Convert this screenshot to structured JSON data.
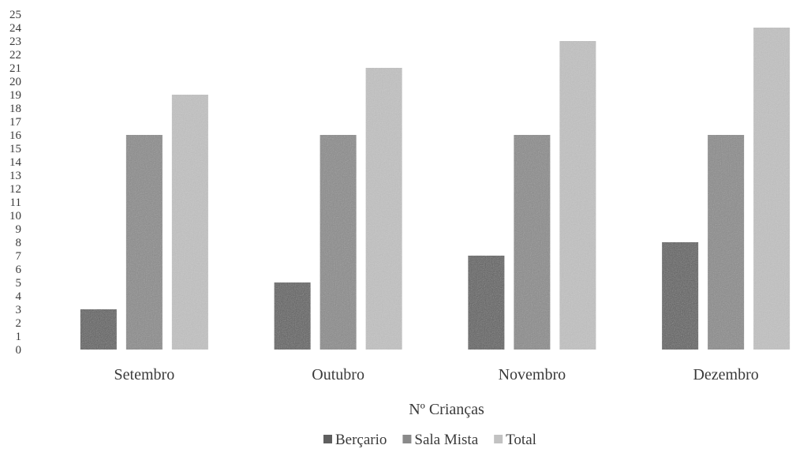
{
  "chart_data": {
    "type": "bar",
    "title": "",
    "xlabel": "Nº Crianças",
    "ylabel": "",
    "categories": [
      "Setembro",
      "Outubro",
      "Novembro",
      "Dezembro"
    ],
    "series": [
      {
        "name": "Berçario",
        "values": [
          3,
          5,
          7,
          8
        ]
      },
      {
        "name": "Sala Mista",
        "values": [
          16,
          16,
          16,
          16
        ]
      },
      {
        "name": "Total",
        "values": [
          19,
          21,
          23,
          24
        ]
      }
    ],
    "ylim": [
      0,
      25
    ],
    "yticks": [
      "0",
      "1",
      "2",
      "3",
      "4",
      "5",
      "6",
      "7",
      "8",
      "9",
      "10",
      "11",
      "12",
      "13",
      "14",
      "15",
      "16",
      "17",
      "18",
      "19",
      "20",
      "21",
      "22",
      "23",
      "24",
      "25"
    ],
    "grid": false,
    "legend_position": "bottom",
    "colors": [
      "#5f5f5f",
      "#8a8a8a",
      "#c2c2c2"
    ]
  }
}
